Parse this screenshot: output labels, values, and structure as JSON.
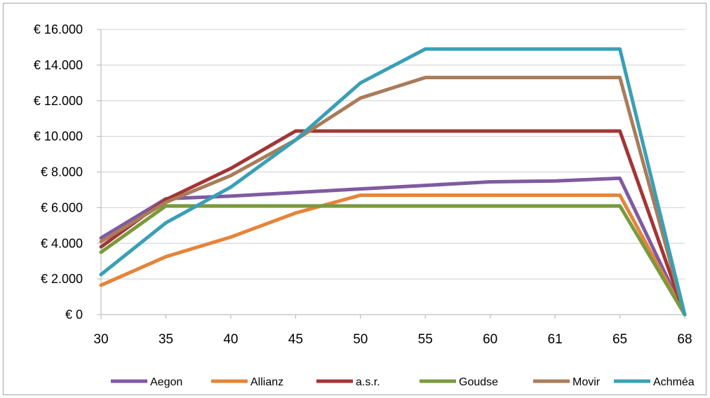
{
  "chart_data": {
    "type": "line",
    "categories": [
      "30",
      "35",
      "40",
      "45",
      "50",
      "55",
      "60",
      "61",
      "65",
      "68"
    ],
    "y_tick_labels": [
      "€ 0",
      "€ 2.000",
      "€ 4.000",
      "€ 6.000",
      "€ 8.000",
      "€ 10.000",
      "€ 12.000",
      "€ 14.000",
      "€ 16.000"
    ],
    "ylim": [
      0,
      16000
    ],
    "y_ticks": [
      0,
      2000,
      4000,
      6000,
      8000,
      10000,
      12000,
      14000,
      16000
    ],
    "grid": "horizontal",
    "legend_position": "bottom",
    "series": [
      {
        "name": "Aegon",
        "color": "#7f5aa2",
        "values": [
          4300,
          6500,
          6650,
          6850,
          7050,
          7250,
          7450,
          7500,
          7650,
          0
        ]
      },
      {
        "name": "Allianz",
        "color": "#e5843a",
        "values": [
          1650,
          3250,
          4350,
          5700,
          6700,
          6700,
          6700,
          6700,
          6700,
          0
        ]
      },
      {
        "name": "a.s.r.",
        "color": "#a33535",
        "values": [
          3800,
          6450,
          8200,
          10300,
          10300,
          10300,
          10300,
          10300,
          10300,
          0
        ]
      },
      {
        "name": "Goudse",
        "color": "#7a9a3c",
        "values": [
          3500,
          6100,
          6100,
          6100,
          6100,
          6100,
          6100,
          6100,
          6100,
          0
        ]
      },
      {
        "name": "Movir",
        "color": "#a97c5a",
        "values": [
          4100,
          6300,
          7800,
          9800,
          12150,
          13300,
          13300,
          13300,
          13300,
          0
        ]
      },
      {
        "name": "Achméa",
        "color": "#3a9fb6",
        "values": [
          2250,
          5150,
          7150,
          9800,
          13000,
          14900,
          14900,
          14900,
          14900,
          0
        ]
      }
    ]
  }
}
